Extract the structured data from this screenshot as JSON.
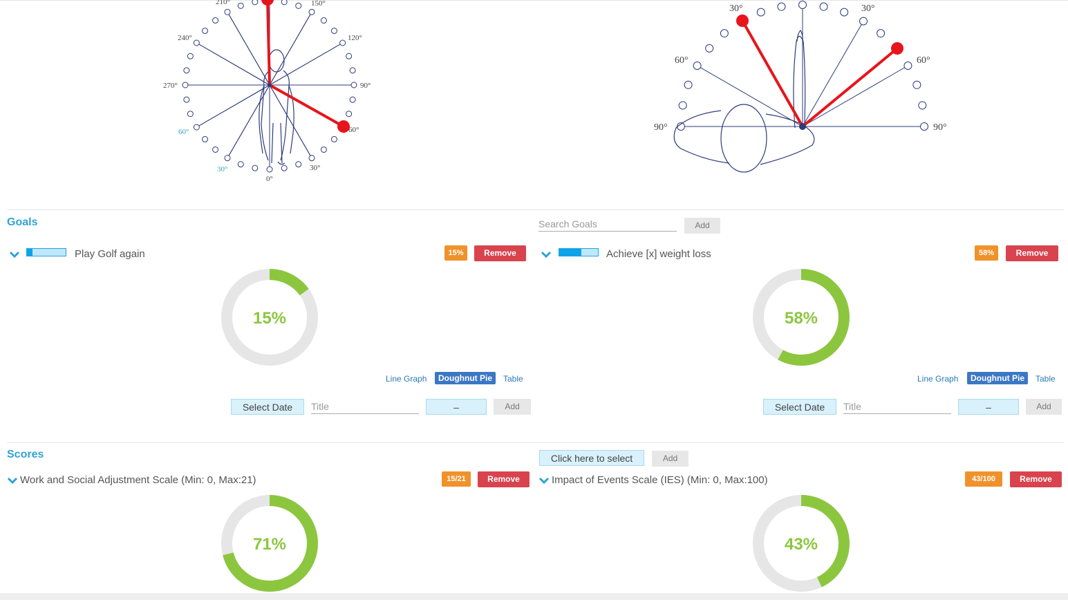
{
  "front_diagram": {
    "top_labels": [
      "210°",
      "150°"
    ],
    "left_labels": [
      "240°",
      "270°"
    ],
    "right_labels": [
      "120°",
      "90°"
    ],
    "lower_left": [
      "60°",
      "30°"
    ],
    "lower_right": [
      "60°",
      "30°"
    ],
    "bottom_label": "0°"
  },
  "top_diagram": {
    "upper_left": "30°",
    "upper_right": "30°",
    "mid_left": "60°",
    "mid_right": "60°",
    "side_left": "90°",
    "side_right": "90°"
  },
  "goals": {
    "section_title": "Goals",
    "search_placeholder": "Search Goals",
    "search_add": "Add",
    "items": [
      {
        "title": "Play Golf again",
        "badge": "15%",
        "remove": "Remove",
        "center_text": "15%",
        "progress": 0.15,
        "view_line": "Line Graph",
        "view_doughnut": "Doughnut Pie",
        "view_table": "Table",
        "select_date": "Select Date",
        "title_placeholder": "Title",
        "value_field": "–",
        "add": "Add"
      },
      {
        "title": "Achieve [x] weight loss",
        "badge": "58%",
        "remove": "Remove",
        "center_text": "58%",
        "progress": 0.58,
        "view_line": "Line Graph",
        "view_doughnut": "Doughnut Pie",
        "view_table": "Table",
        "select_date": "Select Date",
        "title_placeholder": "Title",
        "value_field": "–",
        "add": "Add"
      }
    ]
  },
  "scores": {
    "section_title": "Scores",
    "select_label": "Click here to select",
    "add": "Add",
    "items": [
      {
        "title": "Work and Social Adjustment Scale (Min: 0, Max:21)",
        "badge": "15/21",
        "remove": "Remove",
        "center_text": "71%",
        "progress": 0.71
      },
      {
        "title": "Impact of Events Scale (IES) (Min: 0, Max:100)",
        "badge": "43/100",
        "remove": "Remove",
        "center_text": "43%",
        "progress": 0.43
      }
    ]
  },
  "colors": {
    "accent": "#2fa3d6",
    "donut_fill": "#8cc63f",
    "donut_track": "#e6e6e6",
    "badge": "#f0922b",
    "remove": "#d9434e",
    "diagram_line": "#2c3a7a",
    "diagram_red": "#e8141b"
  }
}
